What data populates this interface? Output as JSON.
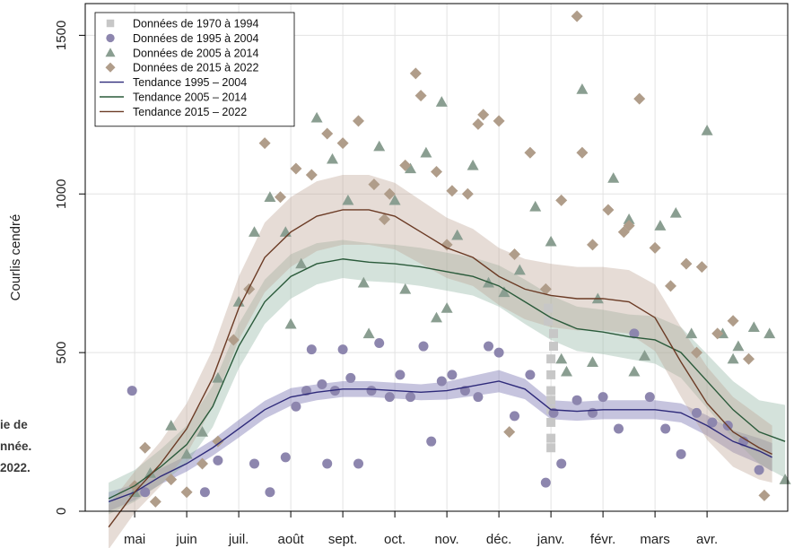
{
  "caption": {
    "line1": "ie de",
    "line2": "nnée.",
    "line3": "2022."
  },
  "chart_data": {
    "type": "scatter",
    "ylabel": "Courlis cendré",
    "xlabel": "",
    "ylim": [
      0,
      1600
    ],
    "yticks": [
      0,
      500,
      1000,
      1500
    ],
    "x_tick_labels": [
      "mai",
      "juin",
      "juil.",
      "août",
      "sept.",
      "oct.",
      "nov.",
      "déc.",
      "janv.",
      "févr.",
      "mars",
      "avr."
    ],
    "x_unit": "month index (1 = mai, 12 = avr.)",
    "xlim": [
      0.05,
      13.55
    ],
    "grid": true,
    "legend_position": "top-left",
    "series": [
      {
        "name": "Données de 1970 à 1994",
        "kind": "points",
        "marker": "square",
        "color": "#c7c7c7",
        "x": [
          9.0,
          9.0,
          9.0,
          9.0,
          9.0,
          9.0,
          9.0,
          9.0,
          9.05,
          9.05,
          8.95,
          8.95
        ],
        "y": [
          200,
          230,
          280,
          320,
          350,
          380,
          430,
          480,
          520,
          560,
          600,
          640
        ]
      },
      {
        "name": "Données de 1995 à 2004",
        "kind": "points",
        "marker": "circle",
        "color": "#8d86ae",
        "x": [
          0.95,
          1.2,
          2.35,
          2.6,
          3.3,
          3.6,
          3.9,
          4.1,
          4.3,
          4.4,
          4.6,
          4.7,
          4.85,
          5.0,
          5.15,
          5.3,
          5.55,
          5.7,
          5.9,
          6.1,
          6.3,
          6.55,
          6.7,
          6.9,
          7.1,
          7.35,
          7.6,
          7.8,
          8.0,
          8.3,
          8.6,
          8.9,
          9.05,
          9.2,
          9.5,
          9.8,
          10.0,
          10.3,
          10.6,
          10.9,
          11.2,
          11.5,
          11.8,
          12.1,
          12.4,
          12.7,
          13.0
        ],
        "y": [
          380,
          60,
          60,
          160,
          150,
          60,
          170,
          330,
          380,
          510,
          400,
          150,
          380,
          510,
          420,
          150,
          380,
          530,
          360,
          430,
          360,
          520,
          220,
          410,
          430,
          380,
          360,
          520,
          500,
          300,
          430,
          90,
          310,
          150,
          350,
          310,
          360,
          260,
          560,
          360,
          260,
          180,
          310,
          280,
          270,
          220,
          130
        ]
      },
      {
        "name": "Données de 2005 à 2014",
        "kind": "points",
        "marker": "triangle",
        "color": "#8a9e91",
        "x": [
          1.0,
          1.3,
          1.7,
          2.0,
          2.3,
          2.6,
          3.0,
          3.3,
          3.6,
          3.9,
          4.2,
          4.5,
          4.8,
          5.1,
          5.4,
          5.7,
          6.0,
          6.3,
          6.6,
          6.9,
          7.2,
          7.5,
          7.8,
          8.1,
          8.4,
          8.7,
          9.0,
          9.3,
          9.6,
          9.9,
          10.2,
          10.5,
          10.8,
          11.1,
          11.4,
          11.7,
          12.0,
          12.3,
          12.6,
          12.9,
          13.2,
          13.5,
          5.5,
          6.2,
          6.8,
          7.0,
          4.0,
          9.2,
          9.8,
          10.6,
          12.5
        ],
        "y": [
          60,
          120,
          270,
          180,
          250,
          420,
          660,
          880,
          990,
          880,
          780,
          1240,
          1110,
          980,
          720,
          1150,
          980,
          1080,
          1130,
          1290,
          870,
          1090,
          720,
          690,
          760,
          960,
          850,
          440,
          1330,
          670,
          1050,
          920,
          490,
          900,
          940,
          560,
          1200,
          560,
          520,
          580,
          560,
          100,
          560,
          700,
          610,
          640,
          590,
          480,
          470,
          440,
          480
        ]
      },
      {
        "name": "Données de 2015 à 2022",
        "kind": "points",
        "marker": "diamond",
        "color": "#b09d8a",
        "x": [
          1.0,
          1.2,
          1.4,
          1.7,
          2.0,
          2.3,
          2.6,
          2.9,
          3.2,
          3.5,
          3.8,
          4.1,
          4.4,
          4.7,
          5.0,
          5.3,
          5.6,
          5.9,
          6.2,
          6.5,
          6.8,
          7.1,
          7.4,
          7.7,
          8.0,
          8.3,
          8.6,
          8.9,
          9.2,
          9.5,
          9.8,
          10.1,
          10.4,
          10.7,
          11.0,
          11.3,
          11.6,
          11.9,
          12.2,
          12.5,
          12.8,
          13.1,
          5.8,
          6.4,
          7.0,
          7.6,
          8.2,
          9.6,
          10.5,
          11.8
        ],
        "y": [
          80,
          200,
          30,
          100,
          60,
          150,
          220,
          540,
          700,
          1160,
          990,
          1080,
          1060,
          1190,
          1160,
          1230,
          1030,
          1000,
          1090,
          1310,
          1070,
          1010,
          1000,
          1250,
          1230,
          810,
          1130,
          700,
          980,
          1560,
          840,
          950,
          880,
          1300,
          830,
          710,
          780,
          770,
          560,
          600,
          480,
          50,
          920,
          1380,
          840,
          1220,
          250,
          1130,
          900,
          500
        ]
      },
      {
        "name": "Tendance 1995 – 2004",
        "kind": "line",
        "color": "#2e2a7a",
        "band_color": "#6a63a8",
        "x": [
          0.5,
          1.0,
          1.5,
          2.0,
          2.5,
          3.0,
          3.5,
          4.0,
          4.5,
          5.0,
          5.5,
          6.0,
          6.5,
          7.0,
          7.5,
          8.0,
          8.5,
          9.0,
          9.5,
          10.0,
          10.5,
          11.0,
          11.5,
          12.0,
          12.5,
          13.0,
          13.25
        ],
        "y": [
          30,
          60,
          110,
          150,
          200,
          260,
          320,
          360,
          375,
          385,
          385,
          380,
          375,
          380,
          395,
          410,
          385,
          320,
          315,
          320,
          320,
          320,
          310,
          270,
          220,
          190,
          170
        ],
        "band": [
          30,
          25,
          25,
          25,
          25,
          28,
          28,
          28,
          25,
          25,
          25,
          25,
          25,
          28,
          32,
          35,
          32,
          30,
          30,
          30,
          30,
          30,
          30,
          32,
          35,
          40,
          45
        ]
      },
      {
        "name": "Tendance 2005 – 2014",
        "kind": "line",
        "color": "#2a5a3a",
        "band_color": "#8fb3a0",
        "x": [
          0.5,
          1.0,
          1.5,
          2.0,
          2.5,
          3.0,
          3.5,
          4.0,
          4.5,
          5.0,
          5.5,
          6.0,
          6.5,
          7.0,
          7.5,
          8.0,
          8.5,
          9.0,
          9.5,
          10.0,
          10.5,
          11.0,
          11.5,
          12.0,
          12.5,
          13.0,
          13.5
        ],
        "y": [
          40,
          80,
          140,
          210,
          330,
          520,
          660,
          740,
          780,
          795,
          785,
          780,
          770,
          755,
          740,
          710,
          660,
          610,
          575,
          565,
          550,
          540,
          500,
          410,
          320,
          250,
          220
        ],
        "band": [
          50,
          50,
          55,
          60,
          65,
          70,
          70,
          70,
          65,
          60,
          60,
          60,
          60,
          60,
          60,
          65,
          70,
          70,
          70,
          70,
          70,
          75,
          80,
          85,
          90,
          100,
          115
        ]
      },
      {
        "name": "Tendance 2015 – 2022",
        "kind": "line",
        "color": "#6b3b25",
        "band_color": "#bca493",
        "x": [
          0.5,
          1.0,
          1.5,
          2.0,
          2.5,
          3.0,
          3.5,
          4.0,
          4.5,
          5.0,
          5.5,
          6.0,
          6.5,
          7.0,
          7.5,
          8.0,
          8.5,
          9.0,
          9.5,
          10.0,
          10.5,
          11.0,
          11.5,
          12.0,
          12.5,
          13.0,
          13.25
        ],
        "y": [
          -50,
          60,
          150,
          260,
          420,
          640,
          800,
          880,
          930,
          950,
          950,
          930,
          880,
          830,
          800,
          740,
          700,
          680,
          670,
          670,
          660,
          610,
          470,
          340,
          250,
          200,
          180
        ],
        "band": [
          70,
          65,
          70,
          80,
          90,
          100,
          110,
          110,
          110,
          110,
          110,
          105,
          100,
          95,
          90,
          90,
          95,
          100,
          100,
          100,
          100,
          105,
          110,
          115,
          110,
          100,
          90
        ]
      }
    ]
  }
}
